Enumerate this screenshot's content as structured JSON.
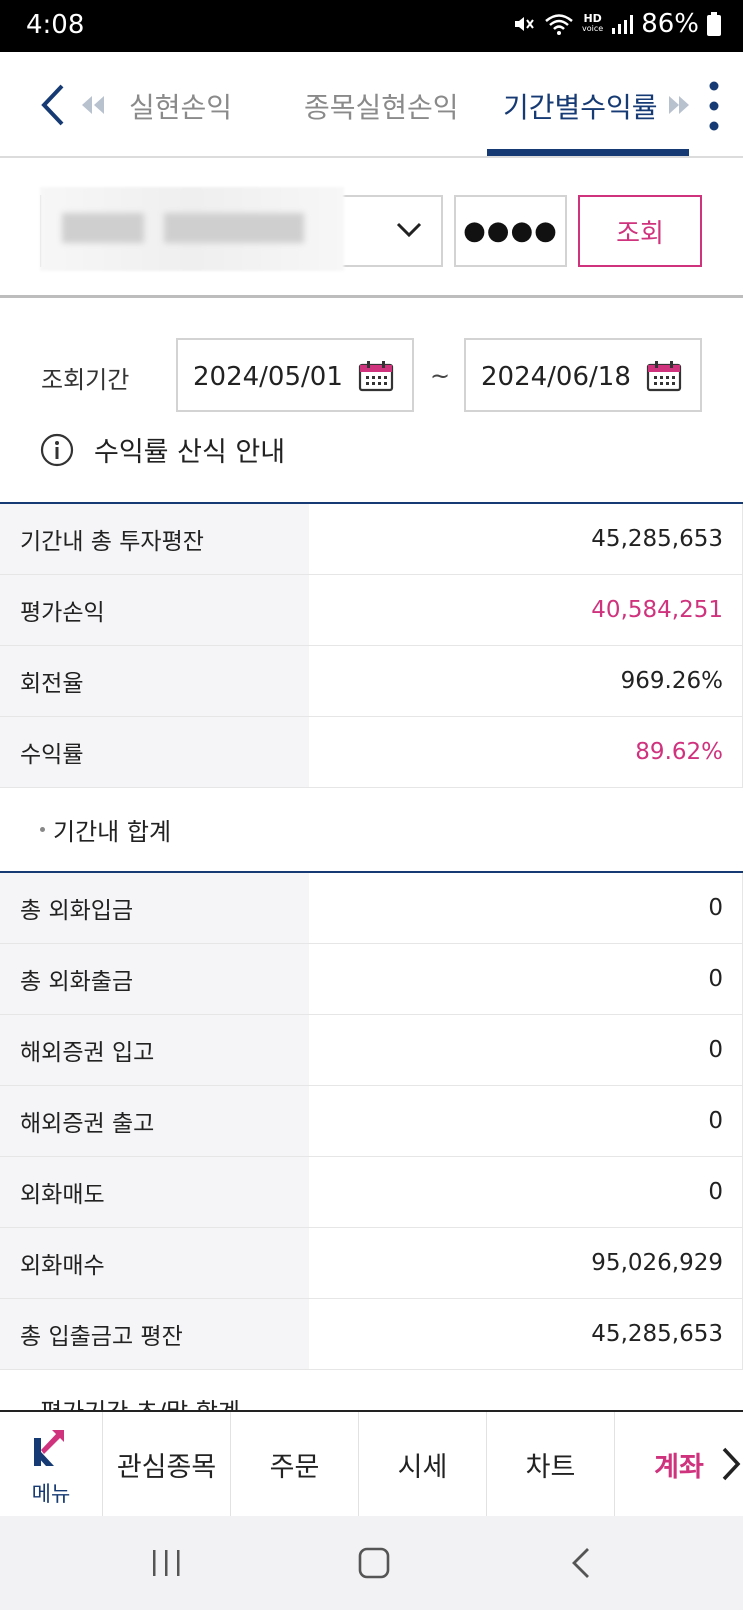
{
  "status_bar": {
    "time": "4:08",
    "battery": "86%",
    "hd_line1": "HD",
    "hd_line2": "voice"
  },
  "header": {
    "tabs": [
      {
        "label": "실현손익",
        "active": false
      },
      {
        "label": "종목실현손익",
        "active": false
      },
      {
        "label": "기간별수익률",
        "active": true
      }
    ]
  },
  "account": {
    "password_mask": "●●●●",
    "query_label": "조회"
  },
  "period": {
    "label": "조회기간",
    "start": "2024/05/01",
    "end": "2024/06/18",
    "separator": "~"
  },
  "info": {
    "label": "수익률 산식 안내"
  },
  "summary_table": [
    {
      "label": "기간내 총 투자평잔",
      "value": "45,285,653",
      "highlight": false
    },
    {
      "label": "평가손익",
      "value": "40,584,251",
      "highlight": true
    },
    {
      "label": "회전율",
      "value": "969.26%",
      "highlight": false
    },
    {
      "label": "수익률",
      "value": "89.62%",
      "highlight": true
    }
  ],
  "sum_caption": "기간내 합계",
  "totals_table": [
    {
      "label": "총 외화입금",
      "value": "0"
    },
    {
      "label": "총 외화출금",
      "value": "0"
    },
    {
      "label": "해외증권 입고",
      "value": "0"
    },
    {
      "label": "해외증권 출고",
      "value": "0"
    },
    {
      "label": "외화매도",
      "value": "0"
    },
    {
      "label": "외화매수",
      "value": "95,026,929"
    },
    {
      "label": "총 입출금고 평잔",
      "value": "45,285,653"
    }
  ],
  "cut_caption": "평가기간 초/말 합계",
  "bottom_nav": {
    "menu_label": "메뉴",
    "items": [
      {
        "label": "관심종목",
        "active": false
      },
      {
        "label": "주문",
        "active": false
      },
      {
        "label": "시세",
        "active": false
      },
      {
        "label": "차트",
        "active": false
      },
      {
        "label": "계좌",
        "active": true
      }
    ]
  },
  "colors": {
    "brand_navy": "#163a73",
    "accent_pink": "#d0337e"
  }
}
